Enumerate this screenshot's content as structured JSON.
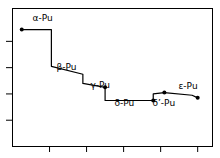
{
  "chart_data": {
    "type": "line",
    "series": [
      {
        "type": "line",
        "x": [
          0.05,
          0.21,
          0.21,
          0.38,
          0.38,
          0.5,
          0.5,
          0.76,
          0.76,
          0.82,
          0.97,
          1.0
        ],
        "values": [
          0.89,
          0.89,
          0.61,
          0.55,
          0.48,
          0.45,
          0.35,
          0.35,
          0.4,
          0.41,
          0.39,
          0.37
        ],
        "color": "black"
      },
      {
        "type": "scatter",
        "x": [
          0.05,
          0.5,
          0.76,
          0.82,
          1.0
        ],
        "values": [
          0.89,
          0.45,
          0.35,
          0.41,
          0.37
        ],
        "color": "black",
        "marker": "circle"
      }
    ],
    "annotations": [
      "α-Pu",
      "β-Pu",
      "γ-Pu",
      "δ-Pu",
      "δ’-Pu",
      "ε-Pu"
    ],
    "xlim": [
      0.0,
      1.08
    ],
    "ylim": [
      0.0,
      1.05
    ],
    "xticks": [
      0.2,
      0.4,
      0.6,
      0.8,
      1.0
    ],
    "yticks": [
      0.2,
      0.4,
      0.6,
      0.8
    ],
    "tick_labels": false,
    "grid": false
  }
}
